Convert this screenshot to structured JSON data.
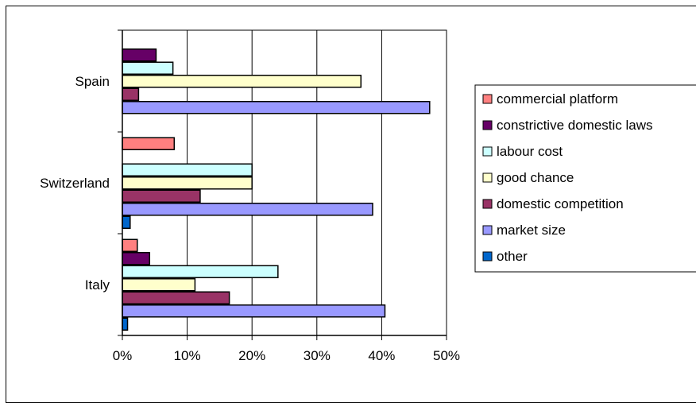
{
  "chart_data": {
    "type": "bar",
    "orientation": "horizontal",
    "categories": [
      "Spain",
      "Switzerland",
      "Italy"
    ],
    "series": [
      {
        "name": "commercial platform",
        "color": "#FF8080",
        "values": [
          0,
          8,
          2.3
        ]
      },
      {
        "name": "constrictive domestic laws",
        "color": "#660066",
        "values": [
          5.2,
          0,
          4.2
        ]
      },
      {
        "name": "labour cost",
        "color": "#CCFFFF",
        "values": [
          7.8,
          20,
          24
        ]
      },
      {
        "name": "good chance",
        "color": "#FFFFCC",
        "values": [
          36.8,
          20,
          11.2
        ]
      },
      {
        "name": "domestic competition",
        "color": "#993366",
        "values": [
          2.5,
          12,
          16.5
        ]
      },
      {
        "name": "market size",
        "color": "#9999FF",
        "values": [
          47.4,
          38.6,
          40.5
        ]
      },
      {
        "name": "other",
        "color": "#0066CC",
        "values": [
          0,
          1.2,
          0.8
        ]
      }
    ],
    "x_ticks": [
      "0%",
      "10%",
      "20%",
      "30%",
      "40%",
      "50%"
    ],
    "xlim": [
      0,
      50
    ],
    "xlabel": "",
    "ylabel": "",
    "title": "",
    "grid": "vertical",
    "legend_position": "right"
  }
}
